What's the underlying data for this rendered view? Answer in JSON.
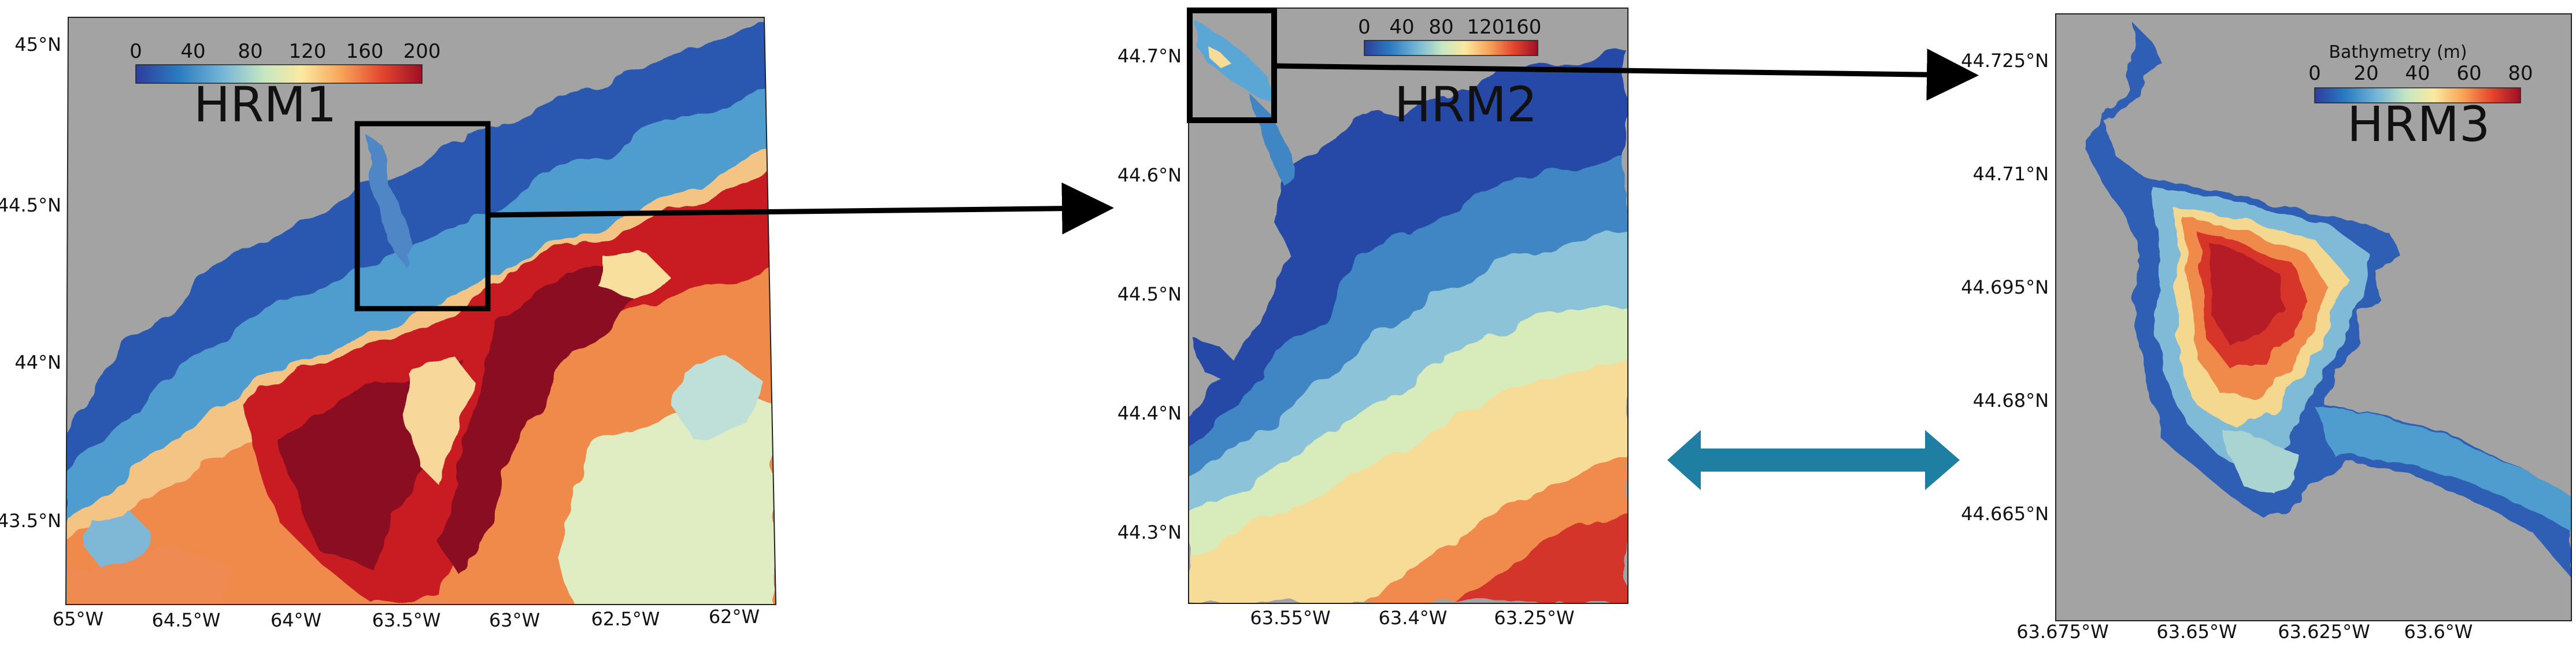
{
  "panels": [
    {
      "id": "hrm1",
      "title": "HRM1",
      "colorbar_ticks": [
        "0",
        "40",
        "80",
        "120",
        "160",
        "200"
      ],
      "lat_ticks": [
        "45°N",
        "44.5°N",
        "44°N",
        "43.5°N"
      ],
      "lon_ticks": [
        "65°W",
        "64.5°W",
        "64°W",
        "63.5°W",
        "63°W",
        "62.5°W",
        "62°W"
      ]
    },
    {
      "id": "hrm2",
      "title": "HRM2",
      "colorbar_ticks": [
        "0",
        "40",
        "80",
        "120",
        "160"
      ],
      "lat_ticks": [
        "44.7°N",
        "44.6°N",
        "44.5°N",
        "44.4°N",
        "44.3°N"
      ],
      "lon_ticks": [
        "63.55°W",
        "63.4°W",
        "63.25°W"
      ]
    },
    {
      "id": "hrm3",
      "title": "HRM3",
      "colorbar_label": "Bathymetry (m)",
      "colorbar_ticks": [
        "0",
        "20",
        "40",
        "60",
        "80"
      ],
      "lat_ticks": [
        "44.725°N",
        "44.71°N",
        "44.695°N",
        "44.68°N",
        "44.665°N"
      ],
      "lon_ticks": [
        "63.675°W",
        "63.65°W",
        "63.625°W",
        "63.6°W"
      ]
    }
  ],
  "colors": {
    "land": "#a3a3a3",
    "arrow": "#000000",
    "double_arrow": "#1f7fa3",
    "colormap": [
      "#2c3e9c",
      "#2b7bc0",
      "#73b5d8",
      "#c7e7c2",
      "#fbe9a0",
      "#f7a35a",
      "#e4462e",
      "#7f0c1f"
    ]
  }
}
